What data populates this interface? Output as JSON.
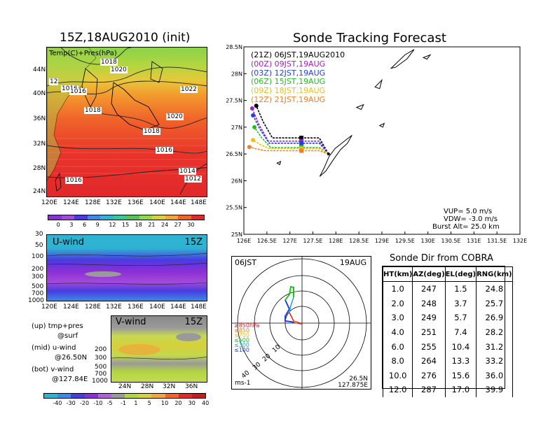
{
  "left_panel": {
    "title": "15Z,18AUG2010 (init)",
    "map_label": "Temp(C)+Pres(hPa)",
    "lat_ticks": [
      "44N",
      "40N",
      "36N",
      "32N",
      "28N",
      "24N"
    ],
    "lon_ticks": [
      "120E",
      "124E",
      "128E",
      "132E",
      "136E",
      "140E",
      "144E",
      "148E"
    ],
    "isobar_labels": [
      "1018",
      "1020",
      "12",
      "1016",
      "1016",
      "1018",
      "1018",
      "1022",
      "1020",
      "1016",
      "1014",
      "1012",
      "1016"
    ],
    "temp_colorbar_ticks": [
      "0",
      "3",
      "6",
      "9",
      "12",
      "15",
      "18",
      "21",
      "24",
      "27",
      "30"
    ],
    "temp_colors": [
      "#8b2fd6",
      "#a24ad9",
      "#4a3be0",
      "#3a8ae6",
      "#2fb3d2",
      "#37c79a",
      "#55c25a",
      "#93d64a",
      "#d7d03b",
      "#f1a53a",
      "#f0642a",
      "#e2282a"
    ],
    "uwind": {
      "title": "U-wind",
      "time": "15Z",
      "p_ticks": [
        "30",
        "50",
        "100",
        "200",
        "300",
        "500",
        "700",
        "1000"
      ],
      "lon_ticks": [
        "120E",
        "124E",
        "128E",
        "132E",
        "136E",
        "140E",
        "144E",
        "148E"
      ]
    },
    "vwind": {
      "title": "V-wind",
      "time": "15Z",
      "p_ticks": [
        "200",
        "300",
        "500",
        "700",
        "1000"
      ],
      "lat_ticks": [
        "24N",
        "28N",
        "32N",
        "36N"
      ]
    },
    "legend_lines": [
      {
        "a": "(up)",
        "b": "tmp+pres",
        "c": "@surf"
      },
      {
        "a": "(mid)",
        "b": "u-wind",
        "c": "@26.50N"
      },
      {
        "a": "(bot)",
        "b": "v-wind",
        "c": "@127.84E"
      }
    ],
    "wind_colorbar_ticks": [
      "-40",
      "-30",
      "-20",
      "-10",
      "-5",
      "-1",
      "1",
      "5",
      "10",
      "20",
      "30",
      "40"
    ],
    "wind_colors": [
      "#2fb3d2",
      "#3a8ae6",
      "#4a3be0",
      "#8b2fd6",
      "#b25fd8",
      "#9a9a9a",
      "#b3d640",
      "#d7d03b",
      "#f1a53a",
      "#f0642a",
      "#e2282a",
      "#c41b1b"
    ]
  },
  "chart_data": {
    "type": "line",
    "title": "Sonde Tracking Forecast",
    "x_ticks": [
      "126E",
      "126.5E",
      "127E",
      "127.5E",
      "128E",
      "128.5E",
      "129E",
      "129.5E",
      "130E",
      "130.5E",
      "131E",
      "131.5E",
      "132E"
    ],
    "y_ticks": [
      "28.5N",
      "28N",
      "27.5N",
      "27N",
      "26.5N",
      "26N",
      "25.5N",
      "25N"
    ],
    "xlim": [
      126,
      132
    ],
    "ylim": [
      25,
      28.5
    ],
    "legend": [
      {
        "run": "(21Z)",
        "valid": "06JST,19AUG2010",
        "color": "#000000"
      },
      {
        "run": "(00Z)",
        "valid": "09JST,19AUG",
        "color": "#a020c0"
      },
      {
        "run": "(03Z)",
        "valid": "12JST,19AUG",
        "color": "#2040e0"
      },
      {
        "run": "(06Z)",
        "valid": "15JST,19AUG",
        "color": "#20c020"
      },
      {
        "run": "(09Z)",
        "valid": "18JST,19AUG",
        "color": "#e8c020"
      },
      {
        "run": "(12Z)",
        "valid": "21JST,19AUG",
        "color": "#f08020"
      }
    ],
    "series": [
      {
        "name": "(21Z)",
        "color": "#000000",
        "end": [
          126.27,
          27.4
        ],
        "square": [
          127.25,
          26.8
        ]
      },
      {
        "name": "(00Z)",
        "color": "#a020c0",
        "end": [
          126.18,
          27.35
        ],
        "square": [
          127.25,
          26.74
        ]
      },
      {
        "name": "(03Z)",
        "color": "#2040e0",
        "end": [
          126.2,
          27.22
        ],
        "square": [
          127.25,
          26.7
        ]
      },
      {
        "name": "(06Z)",
        "color": "#20c020",
        "end": [
          126.23,
          27.0
        ],
        "square": [
          127.25,
          26.62
        ]
      },
      {
        "name": "(09Z)",
        "color": "#e8c020",
        "end": [
          126.2,
          26.76
        ],
        "square": [
          127.25,
          26.6
        ]
      },
      {
        "name": "(12Z)",
        "color": "#f08020",
        "end": [
          126.12,
          26.63
        ],
        "square": [
          127.25,
          26.56
        ]
      }
    ],
    "launch": [
      127.84,
      26.5
    ],
    "params": [
      "VUP= 5.0 m/s",
      "VDW= -3.0 m/s",
      "Burst Alt= 25.0 km"
    ]
  },
  "hodograph": {
    "time": "06JST",
    "date": "19AUG",
    "ring_labels": [
      "10",
      "20",
      "30",
      "40"
    ],
    "legend": [
      {
        "label": "≥850hPa",
        "color": "#e02020"
      },
      {
        "label": "≤850",
        "color": "#f08020"
      },
      {
        "label": "≤700",
        "color": "#e8c020"
      },
      {
        "label": "≤500",
        "color": "#20c020"
      },
      {
        "label": "≤300",
        "color": "#20a0e0"
      },
      {
        "label": "≤100",
        "color": "#2040e0"
      }
    ],
    "unit": "ms-1",
    "lat": "26.5N",
    "lon": "127.875E"
  },
  "sonde_table": {
    "title": "Sonde Dir from COBRA",
    "headers": [
      "HT(km)",
      "AZ(deg)",
      "EL(deg)",
      "RNG(km)"
    ],
    "rows": [
      [
        "1.0",
        "247",
        "1.5",
        "24.8"
      ],
      [
        "2.0",
        "248",
        "3.7",
        "25.7"
      ],
      [
        "3.0",
        "249",
        "5.7",
        "26.9"
      ],
      [
        "4.0",
        "251",
        "7.4",
        "28.2"
      ],
      [
        "6.0",
        "255",
        "10.4",
        "31.2"
      ],
      [
        "8.0",
        "264",
        "13.3",
        "33.2"
      ],
      [
        "10.0",
        "276",
        "15.6",
        "36.0"
      ],
      [
        "12.0",
        "287",
        "17.0",
        "39.9"
      ]
    ]
  }
}
